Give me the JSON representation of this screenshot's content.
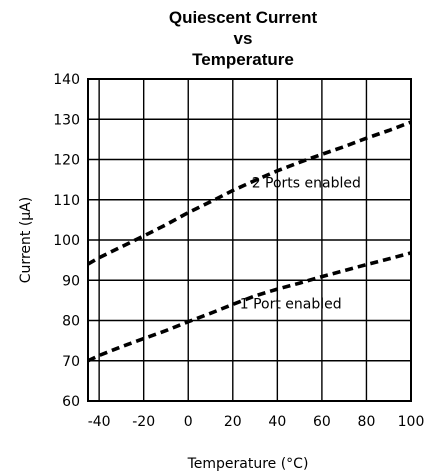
{
  "chart_data": {
    "type": "line",
    "title_lines": [
      "Quiescent Current",
      "vs",
      "Temperature"
    ],
    "xlabel": "Temperature (°C)",
    "ylabel": "Current (μA)",
    "xlim": [
      -45,
      100
    ],
    "ylim": [
      60,
      140
    ],
    "xticks": [
      -40,
      -20,
      0,
      20,
      40,
      60,
      80,
      100
    ],
    "yticks": [
      60,
      70,
      80,
      90,
      100,
      110,
      120,
      130,
      140
    ],
    "grid": true,
    "legend": "none",
    "series": [
      {
        "name": "2 Ports enabled",
        "x": [
          -45,
          -40,
          -30,
          -20,
          -10,
          0,
          10,
          20,
          30,
          40,
          50,
          60,
          70,
          80,
          90,
          100
        ],
        "y": [
          94,
          95.6,
          98.3,
          101,
          103.8,
          106.8,
          109.5,
          112.3,
          114.8,
          117.2,
          119.3,
          121.3,
          123.2,
          125.3,
          127.2,
          129.3
        ]
      },
      {
        "name": "1 Port enabled",
        "x": [
          -45,
          -40,
          -30,
          -20,
          -10,
          0,
          10,
          20,
          30,
          40,
          50,
          60,
          70,
          80,
          90,
          100
        ],
        "y": [
          70,
          71.3,
          73.5,
          75.5,
          77.5,
          79.7,
          81.8,
          84,
          86.1,
          87.8,
          89.3,
          90.9,
          92.4,
          93.9,
          95.3,
          96.8
        ]
      }
    ],
    "annotations": [
      {
        "text": "2 Ports enabled",
        "x": 53,
        "y": 113
      },
      {
        "text": "1 Port enabled",
        "x": 46,
        "y": 83
      }
    ]
  }
}
